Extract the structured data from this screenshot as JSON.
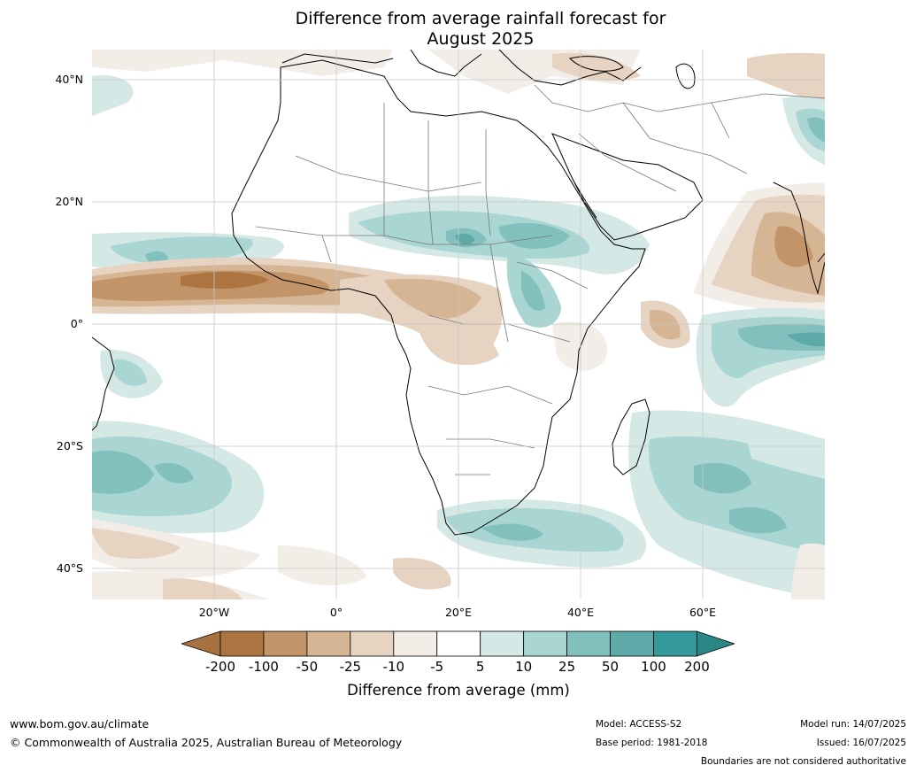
{
  "title_line1": "Difference from average rainfall forecast for",
  "title_line2": "August 2025",
  "lat_labels": [
    "40°N",
    "20°N",
    "0°",
    "20°S",
    "40°S"
  ],
  "lon_labels": [
    "20°W",
    "0°",
    "20°E",
    "40°E",
    "60°E"
  ],
  "colorbar": {
    "title": "Difference from average (mm)",
    "ticks": [
      "-200",
      "-100",
      "-50",
      "-25",
      "-10",
      "-5",
      "5",
      "10",
      "25",
      "50",
      "100",
      "200"
    ],
    "colors": [
      "#a87240",
      "#ab7440",
      "#c29468",
      "#d6b595",
      "#e6d3c1",
      "#f3ede8",
      "#ffffff",
      "#d4e8e6",
      "#a9d5d3",
      "#82c0bd",
      "#5eaaa8",
      "#33999a",
      "#2b8785"
    ]
  },
  "footer": {
    "website": "www.bom.gov.au/climate",
    "copyright": "© Commonwealth of Australia 2025, Australian Bureau of Meteorology",
    "model": "Model: ACCESS-S2",
    "base_period": "Base period: 1981-2018",
    "model_run": "Model run: 14/07/2025",
    "issued": "Issued: 16/07/2025",
    "disclaimer": "Boundaries are not considered authoritative"
  }
}
